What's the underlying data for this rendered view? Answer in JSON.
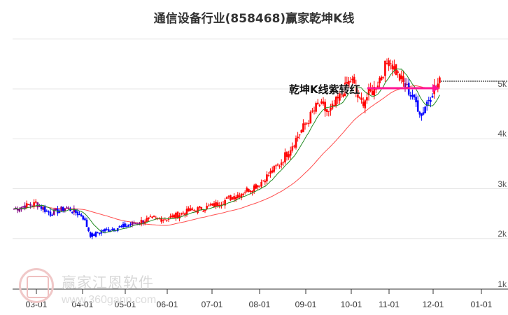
{
  "header": {
    "title": "通信设备行业(858468)赢家乾坤K线"
  },
  "annotation": {
    "text": "乾坤K线紫转红"
  },
  "watermark": {
    "name": "赢家江恩软件",
    "url": "www.360gann.com"
  },
  "colors": {
    "up": "#ff0000",
    "down": "#0000ff",
    "purple": "#800080",
    "ma_short": "#228b22",
    "ma_long": "#ff4d4d",
    "arrow": "#ff1493",
    "grid": "#e6e6e6"
  },
  "chart_data": {
    "type": "candlestick",
    "title": "通信设备行业(858468)赢家乾坤K线",
    "y_axis": {
      "ticks": [
        "1k",
        "2k",
        "3k",
        "4k",
        "5k"
      ],
      "values": [
        1000,
        2000,
        3000,
        4000,
        5000
      ],
      "range": [
        1000,
        6000
      ],
      "position": "right"
    },
    "x_axis": {
      "ticks": [
        "03-01",
        "04-01",
        "05-01",
        "06-01",
        "07-01",
        "08-01",
        "09-01",
        "10-01",
        "11-01",
        "12-01",
        "01-01"
      ]
    },
    "grid": true,
    "legend": null,
    "annotations": [
      {
        "text": "乾坤K线紫转红",
        "type": "arrow",
        "from_date": "10-10",
        "to_date": "12-01",
        "value": 4980
      }
    ],
    "last_price_line": 5150,
    "close_series_approx": [
      {
        "date": "02-15",
        "close": 2600
      },
      {
        "date": "03-01",
        "close": 2700
      },
      {
        "date": "03-10",
        "close": 2500
      },
      {
        "date": "03-20",
        "close": 2620
      },
      {
        "date": "04-01",
        "close": 2450
      },
      {
        "date": "04-08",
        "close": 2050
      },
      {
        "date": "04-15",
        "close": 2150
      },
      {
        "date": "05-01",
        "close": 2250
      },
      {
        "date": "05-15",
        "close": 2380
      },
      {
        "date": "06-01",
        "close": 2400
      },
      {
        "date": "06-15",
        "close": 2550
      },
      {
        "date": "07-01",
        "close": 2650
      },
      {
        "date": "07-15",
        "close": 2850
      },
      {
        "date": "08-01",
        "close": 3100
      },
      {
        "date": "08-15",
        "close": 3500
      },
      {
        "date": "09-01",
        "close": 4300
      },
      {
        "date": "09-10",
        "close": 4700
      },
      {
        "date": "09-20",
        "close": 4500
      },
      {
        "date": "10-01",
        "close": 5200
      },
      {
        "date": "10-10",
        "close": 4700
      },
      {
        "date": "10-20",
        "close": 5000
      },
      {
        "date": "11-01",
        "close": 5600
      },
      {
        "date": "11-10",
        "close": 5200
      },
      {
        "date": "11-20",
        "close": 4850
      },
      {
        "date": "11-25",
        "close": 4500
      },
      {
        "date": "12-01",
        "close": 5000
      },
      {
        "date": "12-05",
        "close": 5150
      }
    ]
  }
}
